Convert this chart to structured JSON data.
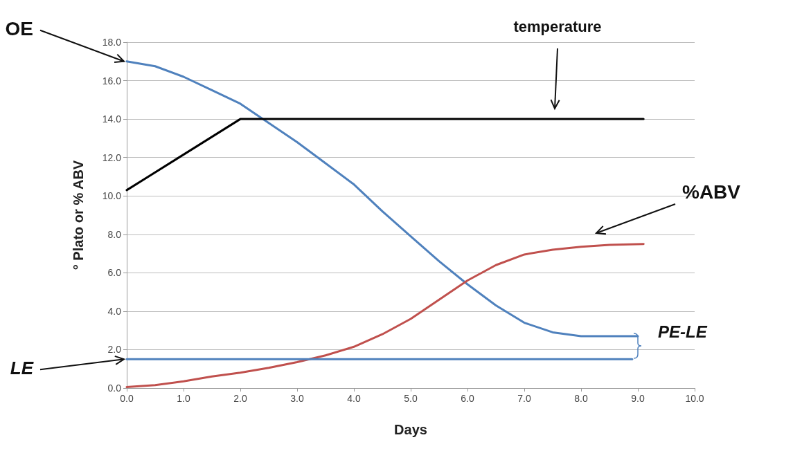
{
  "chart_data": {
    "type": "line",
    "xlabel": "Days",
    "ylabel": "° Plato or % ABV",
    "series": [
      {
        "color": "#4f81bd",
        "x": [
          0,
          0.5,
          1,
          1.5,
          2,
          2.5,
          3,
          3.5,
          4,
          4.5,
          5,
          5.5,
          6,
          6.5,
          7,
          7.5,
          8,
          9
        ],
        "values": [
          17.0,
          16.75,
          16.2,
          15.5,
          14.8,
          13.8,
          12.8,
          11.7,
          10.6,
          9.2,
          7.9,
          6.6,
          5.4,
          4.3,
          3.4,
          2.9,
          2.7,
          2.7
        ]
      },
      {
        "color": "#000000",
        "x": [
          0,
          2,
          9.1
        ],
        "values": [
          10.3,
          14.0,
          14.0
        ]
      },
      {
        "color": "#c0504d",
        "x": [
          0,
          0.5,
          1,
          1.5,
          2,
          2.5,
          3,
          3.5,
          4,
          4.5,
          5,
          5.5,
          6,
          6.5,
          7,
          7.5,
          8,
          8.5,
          9.1
        ],
        "values": [
          0.05,
          0.15,
          0.35,
          0.6,
          0.8,
          1.05,
          1.35,
          1.7,
          2.15,
          2.8,
          3.6,
          4.6,
          5.6,
          6.4,
          6.95,
          7.2,
          7.35,
          7.45,
          7.5
        ]
      },
      {
        "color": "#4f81bd",
        "x": [
          0,
          8.9
        ],
        "values": [
          1.5,
          1.5
        ]
      }
    ],
    "xlim": [
      0,
      10
    ],
    "ylim": [
      0,
      18
    ],
    "xticks": [
      {
        "value": 0,
        "label": "0.0"
      },
      {
        "value": 1,
        "label": "1.0"
      },
      {
        "value": 2,
        "label": "2.0"
      },
      {
        "value": 3,
        "label": "3.0"
      },
      {
        "value": 4,
        "label": "4.0"
      },
      {
        "value": 5,
        "label": "5.0"
      },
      {
        "value": 6,
        "label": "6.0"
      },
      {
        "value": 7,
        "label": "7.0"
      },
      {
        "value": 8,
        "label": "8.0"
      },
      {
        "value": 9,
        "label": "9.0"
      },
      {
        "value": 10,
        "label": "10.0"
      }
    ],
    "yticks": [
      {
        "value": 0,
        "label": "0.0"
      },
      {
        "value": 2,
        "label": "2.0"
      },
      {
        "value": 4,
        "label": "4.0"
      },
      {
        "value": 6,
        "label": "6.0"
      },
      {
        "value": 8,
        "label": "8.0"
      },
      {
        "value": 10,
        "label": "10.0"
      },
      {
        "value": 12,
        "label": "12.0"
      },
      {
        "value": 14,
        "label": "14.0"
      },
      {
        "value": 16,
        "label": "16.0"
      },
      {
        "value": 18,
        "label": "18.0"
      }
    ],
    "grid": "y",
    "marker": "none",
    "line_style": "solid",
    "annotations": [
      {
        "text": "OE",
        "x": 0,
        "y": 17.0
      },
      "temperature",
      "%ABV",
      {
        "text": "LE",
        "x": 0,
        "y": 1.5
      },
      "PE-LE"
    ]
  }
}
